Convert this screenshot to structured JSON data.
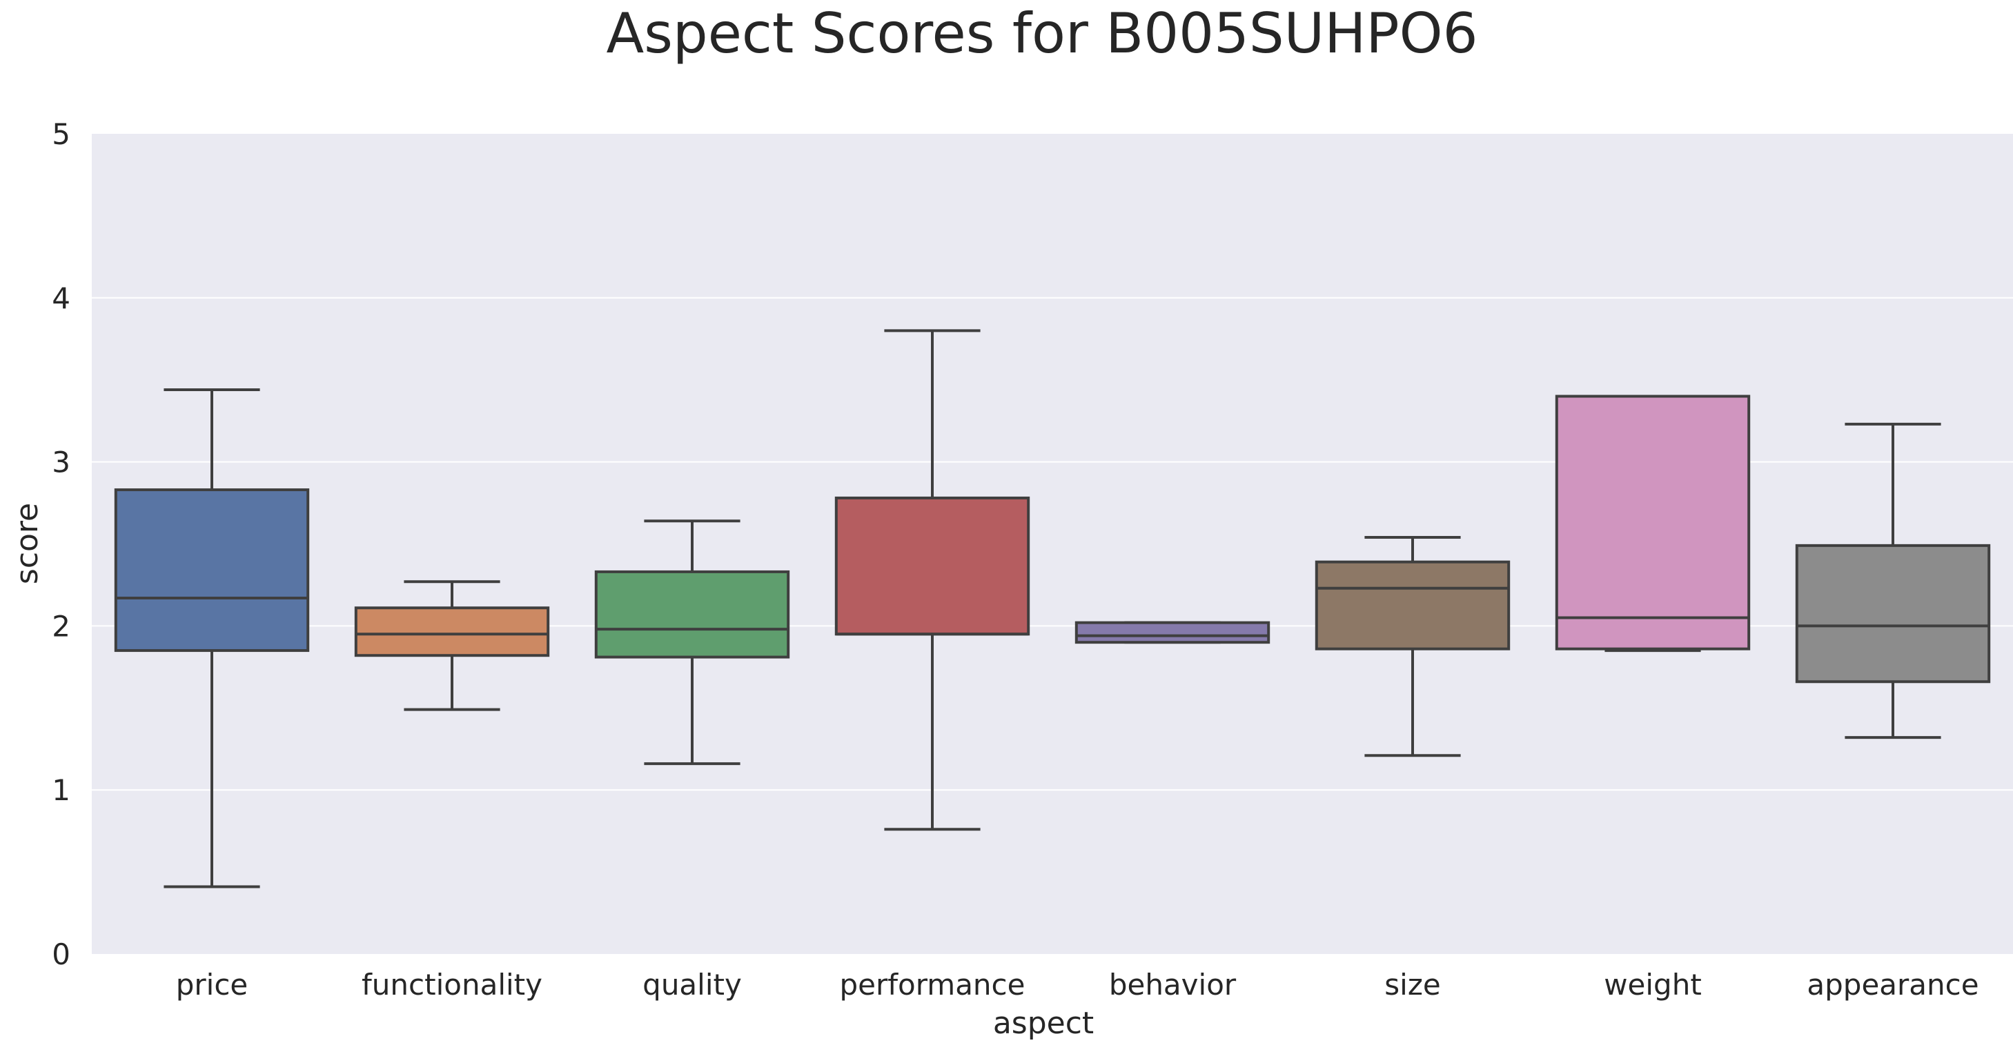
{
  "chart_data": {
    "type": "box",
    "title": "Aspect Scores for B005SUHPO6",
    "xlabel": "aspect",
    "ylabel": "score",
    "ylim": [
      0,
      5
    ],
    "yticks": [
      "0",
      "1",
      "2",
      "3",
      "4",
      "5"
    ],
    "grid": "horizontal",
    "categories": [
      "price",
      "functionality",
      "quality",
      "performance",
      "behavior",
      "size",
      "weight",
      "appearance"
    ],
    "series": [
      {
        "category": "price",
        "whisker_low": 0.41,
        "q1": 1.85,
        "median": 2.17,
        "q3": 2.83,
        "whisker_high": 3.44,
        "color": "#5975a4"
      },
      {
        "category": "functionality",
        "whisker_low": 1.49,
        "q1": 1.82,
        "median": 1.95,
        "q3": 2.11,
        "whisker_high": 2.27,
        "color": "#cc8963"
      },
      {
        "category": "quality",
        "whisker_low": 1.16,
        "q1": 1.81,
        "median": 1.98,
        "q3": 2.33,
        "whisker_high": 2.64,
        "color": "#5f9e6e"
      },
      {
        "category": "performance",
        "whisker_low": 0.76,
        "q1": 1.95,
        "median": 1.95,
        "q3": 2.78,
        "whisker_high": 3.8,
        "color": "#b55d60"
      },
      {
        "category": "behavior",
        "whisker_low": 1.9,
        "q1": 1.9,
        "median": 1.94,
        "q3": 2.02,
        "whisker_high": 2.02,
        "color": "#857aab"
      },
      {
        "category": "size",
        "whisker_low": 1.21,
        "q1": 1.86,
        "median": 2.23,
        "q3": 2.39,
        "whisker_high": 2.54,
        "color": "#8d7866"
      },
      {
        "category": "weight",
        "whisker_low": 1.85,
        "q1": 1.86,
        "median": 2.05,
        "q3": 3.4,
        "whisker_high": 3.4,
        "color": "#d095bf"
      },
      {
        "category": "appearance",
        "whisker_low": 1.32,
        "q1": 1.66,
        "median": 2.0,
        "q3": 2.49,
        "whisker_high": 3.23,
        "color": "#8c8c8c"
      }
    ],
    "colors": {
      "plot_background": "#eaeaf2",
      "grid": "#ffffff",
      "line": "#3f3f3f",
      "text": "#262626"
    }
  }
}
